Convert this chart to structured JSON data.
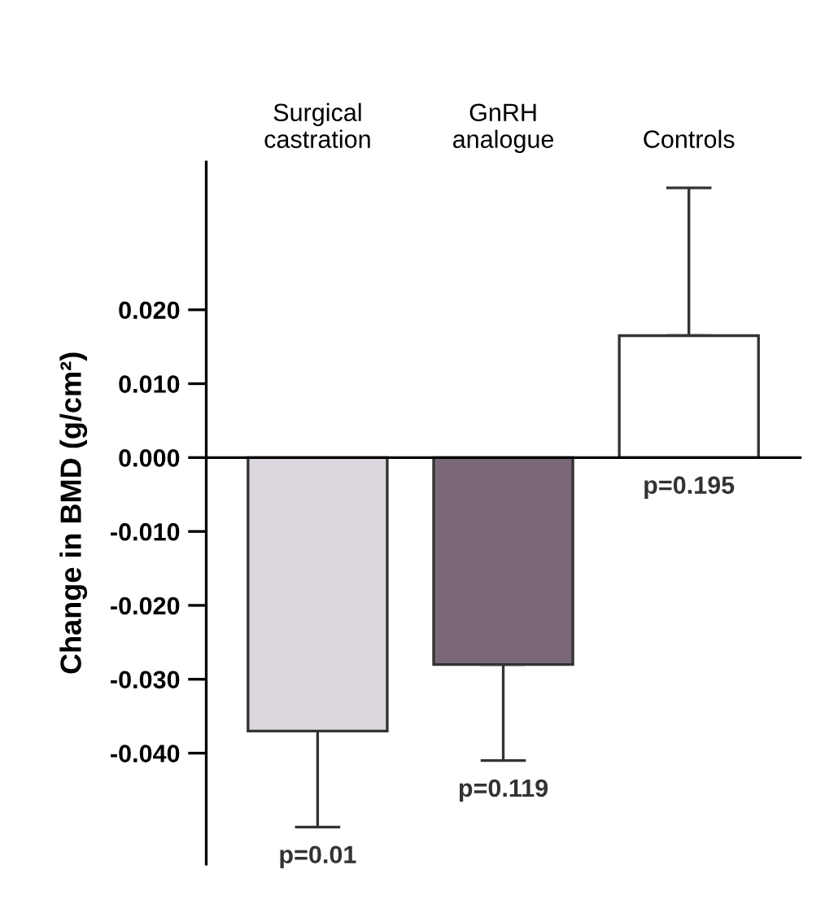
{
  "chart_data": {
    "type": "bar",
    "ylabel": "Change in BMD (g/cm²)",
    "categories": [
      "Surgical\ncastration",
      "GnRH\nanalogue",
      "Controls"
    ],
    "values": [
      -0.037,
      -0.028,
      0.0165
    ],
    "errors": [
      [
        -0.05,
        -0.037
      ],
      [
        -0.041,
        -0.028
      ],
      [
        0.0165,
        0.0365
      ]
    ],
    "colors": [
      "#dcd6de",
      "#7a6878",
      "#ffffff"
    ],
    "ylim": [
      -0.055,
      0.04
    ],
    "yticks": [
      {
        "value": 0.02,
        "label": "0.020"
      },
      {
        "value": 0.01,
        "label": "0.010"
      },
      {
        "value": 0.0,
        "label": "0.000"
      },
      {
        "value": -0.01,
        "label": "-0.010"
      },
      {
        "value": -0.02,
        "label": "-0.020"
      },
      {
        "value": -0.03,
        "label": "-0.030"
      },
      {
        "value": -0.04,
        "label": "-0.040"
      }
    ],
    "annotations": [
      "p=0.01",
      "p=0.119",
      "p=0.195"
    ]
  }
}
